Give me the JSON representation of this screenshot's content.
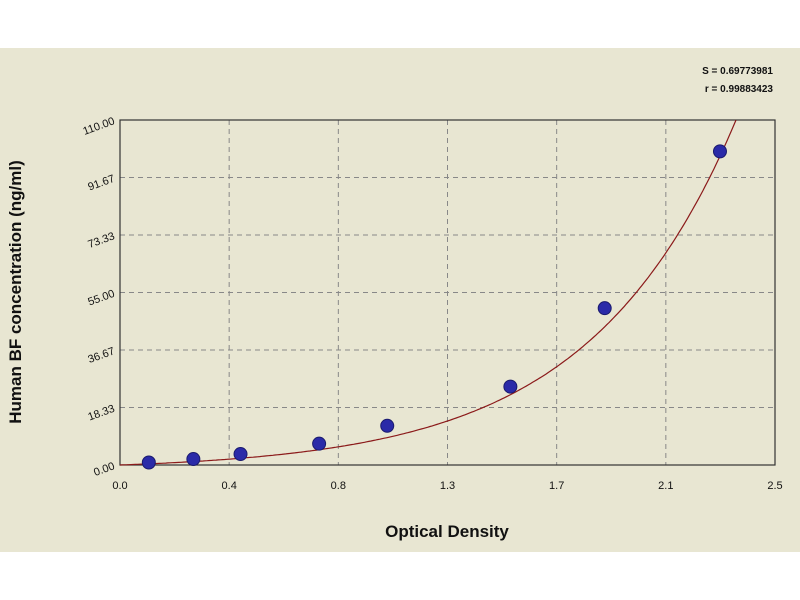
{
  "chart_data": {
    "type": "scatter",
    "xlabel": "Optical Density",
    "ylabel": "Human BF concentration (ng/ml)",
    "xlim": [
      0,
      2.5
    ],
    "ylim": [
      0,
      110
    ],
    "x_ticks": [
      "0.0",
      "0.4",
      "0.8",
      "1.3",
      "1.7",
      "2.1",
      "2.5"
    ],
    "y_ticks": [
      "0.00",
      "18.33",
      "36.67",
      "55.00",
      "73.33",
      "91.67",
      "110.00"
    ],
    "grid": true,
    "points": [
      {
        "x": 0.11,
        "y": 0.8
      },
      {
        "x": 0.28,
        "y": 1.9
      },
      {
        "x": 0.46,
        "y": 3.5
      },
      {
        "x": 0.76,
        "y": 6.8
      },
      {
        "x": 1.02,
        "y": 12.5
      },
      {
        "x": 1.49,
        "y": 25.0
      },
      {
        "x": 1.85,
        "y": 50.0
      },
      {
        "x": 2.29,
        "y": 100.0
      }
    ],
    "fit_curve": {
      "a": 1.7,
      "b": 1.78
    },
    "point_color": "#2a2aa8",
    "curve_color": "#8b1a1a",
    "annotations": [
      "S = 0.69773981",
      "r = 0.99883423"
    ]
  }
}
